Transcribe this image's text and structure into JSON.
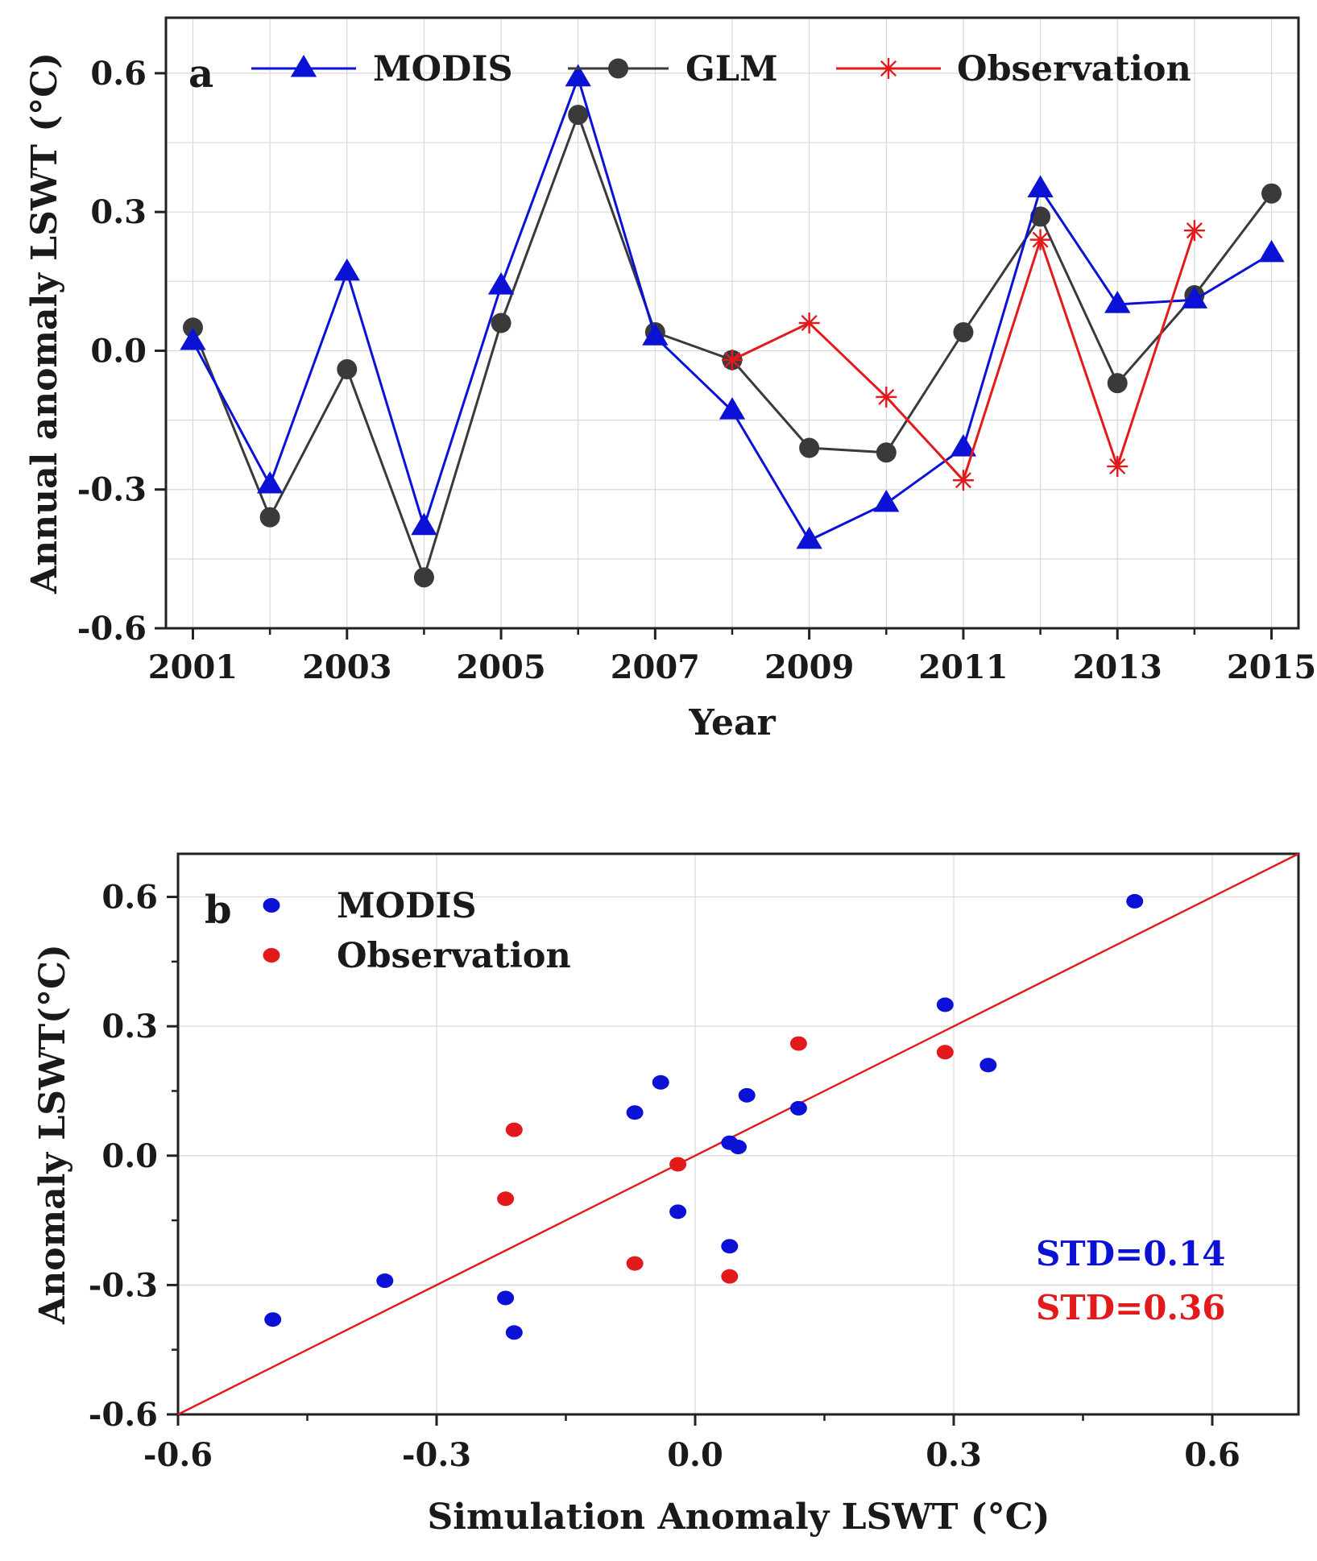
{
  "colors": {
    "modis": "#0b12d6",
    "glm": "#3a3a3a",
    "observation": "#e31a1c",
    "fit_line": "#e31a1c",
    "grid": "#d8d8d8",
    "axis": "#222222"
  },
  "chart_data": [
    {
      "type": "line",
      "panel": "a",
      "xlabel": "Year",
      "ylabel": "Annual anomaly LSWT (°C)",
      "xlim": [
        2000.65,
        2015.35
      ],
      "ylim": [
        -0.6,
        0.72
      ],
      "xticks": [
        2001,
        2003,
        2005,
        2007,
        2009,
        2011,
        2013,
        2015
      ],
      "xtick_labels": [
        "2001",
        "2003",
        "2005",
        "2007",
        "2009",
        "2011",
        "2013",
        "2015"
      ],
      "yticks": [
        -0.6,
        -0.3,
        0.0,
        0.3,
        0.6
      ],
      "ytick_labels": [
        "-0.6",
        "-0.3",
        "0.0",
        "0.3",
        "0.6"
      ],
      "legend_position": "top",
      "series": [
        {
          "name": "MODIS",
          "marker": "triangle",
          "x": [
            2001,
            2002,
            2003,
            2004,
            2005,
            2006,
            2007,
            2008,
            2009,
            2010,
            2011,
            2012,
            2013,
            2014,
            2015
          ],
          "values": [
            0.02,
            -0.29,
            0.17,
            -0.38,
            0.14,
            0.59,
            0.03,
            -0.13,
            -0.41,
            -0.33,
            -0.21,
            0.35,
            0.1,
            0.11,
            0.21
          ]
        },
        {
          "name": "GLM",
          "marker": "circle",
          "x": [
            2001,
            2002,
            2003,
            2004,
            2005,
            2006,
            2007,
            2008,
            2009,
            2010,
            2011,
            2012,
            2013,
            2014,
            2015
          ],
          "values": [
            0.05,
            -0.36,
            -0.04,
            -0.49,
            0.06,
            0.51,
            0.04,
            -0.02,
            -0.21,
            -0.22,
            0.04,
            0.29,
            -0.07,
            0.12,
            0.34
          ]
        },
        {
          "name": "Observation",
          "marker": "asterisk",
          "x": [
            2008,
            2009,
            2010,
            2011,
            2012,
            2013,
            2014
          ],
          "values": [
            -0.02,
            0.06,
            -0.1,
            -0.28,
            0.24,
            -0.25,
            0.26
          ]
        }
      ],
      "panel_label": "a"
    },
    {
      "type": "scatter",
      "panel": "b",
      "xlabel": "Simulation Anomaly LSWT (°C)",
      "ylabel": "Anomaly LSWT(°C)",
      "xlim": [
        -0.6,
        0.7
      ],
      "ylim": [
        -0.6,
        0.7
      ],
      "xticks": [
        -0.6,
        -0.3,
        0.0,
        0.3,
        0.6
      ],
      "xtick_labels": [
        "-0.6",
        "-0.3",
        "0.0",
        "0.3",
        "0.6"
      ],
      "yticks": [
        -0.6,
        -0.3,
        0.0,
        0.3,
        0.6
      ],
      "ytick_labels": [
        "-0.6",
        "-0.3",
        "0.0",
        "0.3",
        "0.6"
      ],
      "legend_position": "top-left",
      "fit_line": [
        [
          -0.6,
          -0.6
        ],
        [
          0.7,
          0.7
        ]
      ],
      "series": [
        {
          "name": "MODIS",
          "x": [
            0.05,
            -0.36,
            -0.04,
            -0.49,
            0.06,
            0.51,
            0.04,
            -0.02,
            -0.21,
            -0.22,
            0.04,
            0.29,
            -0.07,
            0.12,
            0.34
          ],
          "y": [
            0.02,
            -0.29,
            0.17,
            -0.38,
            0.14,
            0.59,
            0.03,
            -0.13,
            -0.41,
            -0.33,
            -0.21,
            0.35,
            0.1,
            0.11,
            0.21
          ]
        },
        {
          "name": "Observation",
          "x": [
            -0.02,
            -0.21,
            -0.22,
            0.04,
            0.29,
            -0.07,
            0.12
          ],
          "y": [
            -0.02,
            0.06,
            -0.1,
            -0.28,
            0.24,
            -0.25,
            0.26
          ]
        }
      ],
      "annotations": [
        {
          "text": "STD=0.14",
          "series": "MODIS"
        },
        {
          "text": "STD=0.36",
          "series": "Observation"
        }
      ],
      "panel_label": "b"
    }
  ]
}
